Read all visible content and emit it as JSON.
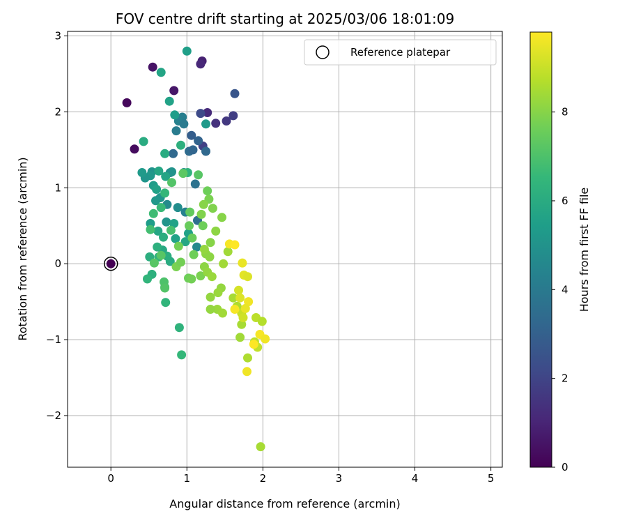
{
  "chart_data": {
    "type": "scatter",
    "title": "FOV centre drift starting at 2025/03/06 18:01:09",
    "xlabel": "Angular distance from reference (arcmin)",
    "ylabel": "Rotation from reference (arcmin)",
    "colorbar_label": "Hours from first FF file",
    "xlim": [
      -0.57,
      5.15
    ],
    "ylim": [
      -2.68,
      3.06
    ],
    "xticks": [
      0,
      1,
      2,
      3,
      4,
      5
    ],
    "xtick_labels": [
      "0",
      "1",
      "2",
      "3",
      "4",
      "5"
    ],
    "yticks": [
      -2,
      -1,
      0,
      1,
      2,
      3
    ],
    "ytick_labels": [
      "−2",
      "−1",
      "0",
      "1",
      "2",
      "3"
    ],
    "colorbar_range": [
      0,
      9.8
    ],
    "colorbar_ticks": [
      0,
      2,
      4,
      6,
      8
    ],
    "colorbar_tick_labels": [
      "0",
      "2",
      "4",
      "6",
      "8"
    ],
    "colormap": "viridis",
    "grid": true,
    "legend": {
      "placement": "top-right",
      "entries": [
        "Reference platepar"
      ]
    },
    "reference_point": {
      "x": 0,
      "y": 0
    },
    "points": [
      [
        0.21,
        2.12,
        0.2
      ],
      [
        0.31,
        1.51,
        0.3
      ],
      [
        0.55,
        2.59,
        0.5
      ],
      [
        0.83,
        2.28,
        0.6
      ],
      [
        1.2,
        2.67,
        0.9
      ],
      [
        1.18,
        2.63,
        1.1
      ],
      [
        1.27,
        1.99,
        1.2
      ],
      [
        1.38,
        1.85,
        1.4
      ],
      [
        1.52,
        1.88,
        1.6
      ],
      [
        1.61,
        1.95,
        1.8
      ],
      [
        1.21,
        1.55,
        1.9
      ],
      [
        1.18,
        1.98,
        2.2
      ],
      [
        1.63,
        2.24,
        2.6
      ],
      [
        1.06,
        1.69,
        2.9
      ],
      [
        1.15,
        1.62,
        3.1
      ],
      [
        1.25,
        1.48,
        3.3
      ],
      [
        1.03,
        1.48,
        3.4
      ],
      [
        1.08,
        1.5,
        3.2
      ],
      [
        0.82,
        1.45,
        3.3
      ],
      [
        1.11,
        1.05,
        3.7
      ],
      [
        1.14,
        0.57,
        3.6
      ],
      [
        0.86,
        1.75,
        4.1
      ],
      [
        0.94,
        1.93,
        4.2
      ],
      [
        0.89,
        1.88,
        4.3
      ],
      [
        0.96,
        1.84,
        4.0
      ],
      [
        0.78,
        1.2,
        4.5
      ],
      [
        0.98,
        0.68,
        4.3
      ],
      [
        1.13,
        0.22,
        4.6
      ],
      [
        0.88,
        0.74,
        4.8
      ],
      [
        0.74,
        0.78,
        4.7
      ],
      [
        0.96,
        1.2,
        4.9
      ],
      [
        0.8,
        1.21,
        5.0
      ],
      [
        0.65,
        0.87,
        5.1
      ],
      [
        0.59,
        0.83,
        5.2
      ],
      [
        0.73,
        0.55,
        5.1
      ],
      [
        1.25,
        1.84,
        5.3
      ],
      [
        0.84,
        1.96,
        5.4
      ],
      [
        0.77,
        2.14,
        5.6
      ],
      [
        1.0,
        2.8,
        5.5
      ],
      [
        0.66,
        2.52,
        5.7
      ],
      [
        0.54,
        1.21,
        5.0
      ],
      [
        0.52,
        1.16,
        5.2
      ],
      [
        0.45,
        1.13,
        5.1
      ],
      [
        0.41,
        1.2,
        5.3
      ],
      [
        0.56,
        1.03,
        5.4
      ],
      [
        0.6,
        0.98,
        5.6
      ],
      [
        0.63,
        1.22,
        5.8
      ],
      [
        0.72,
        1.15,
        5.7
      ],
      [
        0.52,
        0.53,
        5.4
      ],
      [
        0.62,
        0.43,
        5.8
      ],
      [
        0.83,
        0.53,
        5.6
      ],
      [
        0.85,
        0.33,
        5.6
      ],
      [
        0.98,
        0.29,
        5.8
      ],
      [
        1.02,
        0.4,
        5.6
      ],
      [
        0.68,
        0.18,
        5.9
      ],
      [
        0.78,
        0.03,
        6.0
      ],
      [
        0.74,
        0.1,
        6.1
      ],
      [
        0.69,
        0.35,
        6.1
      ],
      [
        0.61,
        0.22,
        6.2
      ],
      [
        0.63,
        0.09,
        6.3
      ],
      [
        0.51,
        0.09,
        6.1
      ],
      [
        0.54,
        -0.14,
        6.2
      ],
      [
        0.48,
        -0.2,
        6.4
      ],
      [
        0.71,
        -0.31,
        6.5
      ],
      [
        0.72,
        -0.51,
        6.4
      ],
      [
        0.9,
        -0.84,
        6.3
      ],
      [
        0.93,
        -1.2,
        6.5
      ],
      [
        0.43,
        1.61,
        6.0
      ],
      [
        0.71,
        1.45,
        6.0
      ],
      [
        0.92,
        1.56,
        6.2
      ],
      [
        1.01,
        1.2,
        6.3
      ],
      [
        0.71,
        0.93,
        6.5
      ],
      [
        0.66,
        0.74,
        6.6
      ],
      [
        0.56,
        0.66,
        6.7
      ],
      [
        0.52,
        0.45,
        6.8
      ],
      [
        0.79,
        0.44,
        6.9
      ],
      [
        0.7,
        -0.24,
        7.0
      ],
      [
        0.71,
        -0.32,
        7.1
      ],
      [
        0.57,
        0.01,
        7.2
      ],
      [
        0.66,
        0.11,
        7.2
      ],
      [
        0.8,
        1.07,
        7.1
      ],
      [
        0.95,
        1.19,
        7.3
      ],
      [
        1.15,
        1.17,
        7.2
      ],
      [
        1.04,
        0.68,
        7.4
      ],
      [
        1.03,
        0.5,
        7.5
      ],
      [
        1.21,
        0.5,
        7.6
      ],
      [
        1.07,
        0.34,
        7.5
      ],
      [
        1.09,
        0.12,
        7.6
      ],
      [
        0.89,
        0.23,
        7.7
      ],
      [
        0.86,
        -0.04,
        7.8
      ],
      [
        0.92,
        0.02,
        7.7
      ],
      [
        1.02,
        -0.19,
        7.6
      ],
      [
        1.06,
        -0.2,
        7.7
      ],
      [
        1.18,
        -0.16,
        7.8
      ],
      [
        1.27,
        0.96,
        7.6
      ],
      [
        1.29,
        0.85,
        7.8
      ],
      [
        1.34,
        0.73,
        7.9
      ],
      [
        1.22,
        0.78,
        8.0
      ],
      [
        1.19,
        0.65,
        7.9
      ],
      [
        1.46,
        0.61,
        8.0
      ],
      [
        1.38,
        0.43,
        8.1
      ],
      [
        1.31,
        0.28,
        8.0
      ],
      [
        1.25,
        0.13,
        8.1
      ],
      [
        1.23,
        0.19,
        8.2
      ],
      [
        1.3,
        0.09,
        8.1
      ],
      [
        1.23,
        -0.04,
        8.1
      ],
      [
        1.27,
        -0.11,
        8.2
      ],
      [
        1.33,
        -0.17,
        8.3
      ],
      [
        1.45,
        -0.32,
        8.2
      ],
      [
        1.41,
        -0.38,
        8.3
      ],
      [
        1.31,
        -0.44,
        8.2
      ],
      [
        1.4,
        -0.6,
        8.3
      ],
      [
        1.47,
        -0.65,
        8.4
      ],
      [
        1.31,
        -0.6,
        8.2
      ],
      [
        1.48,
        0.0,
        8.4
      ],
      [
        1.54,
        0.16,
        8.4
      ],
      [
        1.61,
        -0.45,
        8.5
      ],
      [
        1.66,
        -0.56,
        8.6
      ],
      [
        1.72,
        -0.8,
        8.5
      ],
      [
        1.7,
        -0.97,
        8.4
      ],
      [
        1.8,
        -1.24,
        8.6
      ],
      [
        1.97,
        -2.41,
        8.5
      ],
      [
        1.89,
        -1.03,
        8.8
      ],
      [
        1.93,
        -1.1,
        8.9
      ],
      [
        1.91,
        -0.71,
        8.8
      ],
      [
        1.99,
        -0.76,
        8.7
      ],
      [
        1.72,
        -0.65,
        9.0
      ],
      [
        1.74,
        -0.71,
        9.1
      ],
      [
        1.68,
        -0.35,
        9.2
      ],
      [
        1.7,
        -0.45,
        9.3
      ],
      [
        1.75,
        -0.15,
        9.4
      ],
      [
        1.73,
        0.01,
        9.5
      ],
      [
        1.8,
        -0.17,
        9.3
      ],
      [
        1.81,
        -0.5,
        9.6
      ],
      [
        1.77,
        -0.59,
        9.5
      ],
      [
        1.63,
        -0.6,
        9.7
      ],
      [
        1.56,
        0.26,
        9.7
      ],
      [
        1.63,
        0.25,
        9.8
      ],
      [
        1.79,
        -1.42,
        9.6
      ],
      [
        1.88,
        -1.06,
        9.8
      ],
      [
        1.96,
        -0.93,
        9.7
      ],
      [
        2.03,
        -0.99,
        9.6
      ]
    ]
  }
}
